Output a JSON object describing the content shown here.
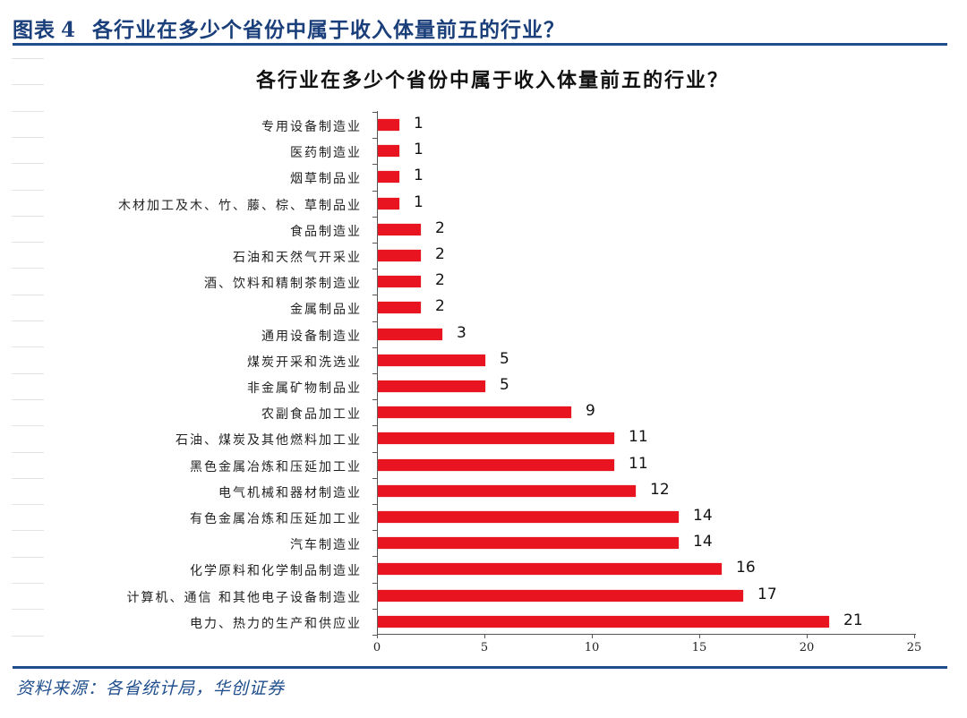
{
  "figure": {
    "label": "图表",
    "number": "4",
    "title": "各行业在多少个省份中属于收入体量前五的行业？"
  },
  "source": "资料来源：各省统计局，华创证券",
  "colors": {
    "bar": "#e8141f",
    "accent": "#1f4e8c"
  },
  "chart_data": {
    "type": "bar",
    "orientation": "horizontal",
    "title": "各行业在多少个省份中属于收入体量前五的行业？",
    "xlabel": "",
    "ylabel": "",
    "xlim": [
      0,
      25
    ],
    "x_ticks": [
      "0",
      "5",
      "10",
      "15",
      "20",
      "25"
    ],
    "grid": false,
    "legend": null,
    "data_labels": true,
    "categories": [
      "专用设备制造业",
      "医药制造业",
      "烟草制品业",
      "木材加工及木、竹、藤、棕、草制品业",
      "食品制造业",
      "石油和天然气开采业",
      "酒、饮料和精制茶制造业",
      "金属制品业",
      "通用设备制造业",
      "煤炭开采和洗选业",
      "非金属矿物制品业",
      "农副食品加工业",
      "石油、煤炭及其他燃料加工业",
      "黑色金属冶炼和压延加工业",
      "电气机械和器材制造业",
      "有色金属冶炼和压延加工业",
      "汽车制造业",
      "化学原料和化学制品制造业",
      "计算机、通信 和其他电子设备制造业",
      "电力、热力的生产和供应业"
    ],
    "values": [
      1,
      1,
      1,
      1,
      2,
      2,
      2,
      2,
      3,
      5,
      5,
      9,
      11,
      11,
      12,
      14,
      14,
      16,
      17,
      21
    ],
    "value_labels": [
      "1",
      "1",
      "1",
      "1",
      "2",
      "2",
      "2",
      "2",
      "3",
      "5",
      "5",
      "9",
      "11",
      "11",
      "12",
      "14",
      "14",
      "16",
      "17",
      "21"
    ]
  }
}
